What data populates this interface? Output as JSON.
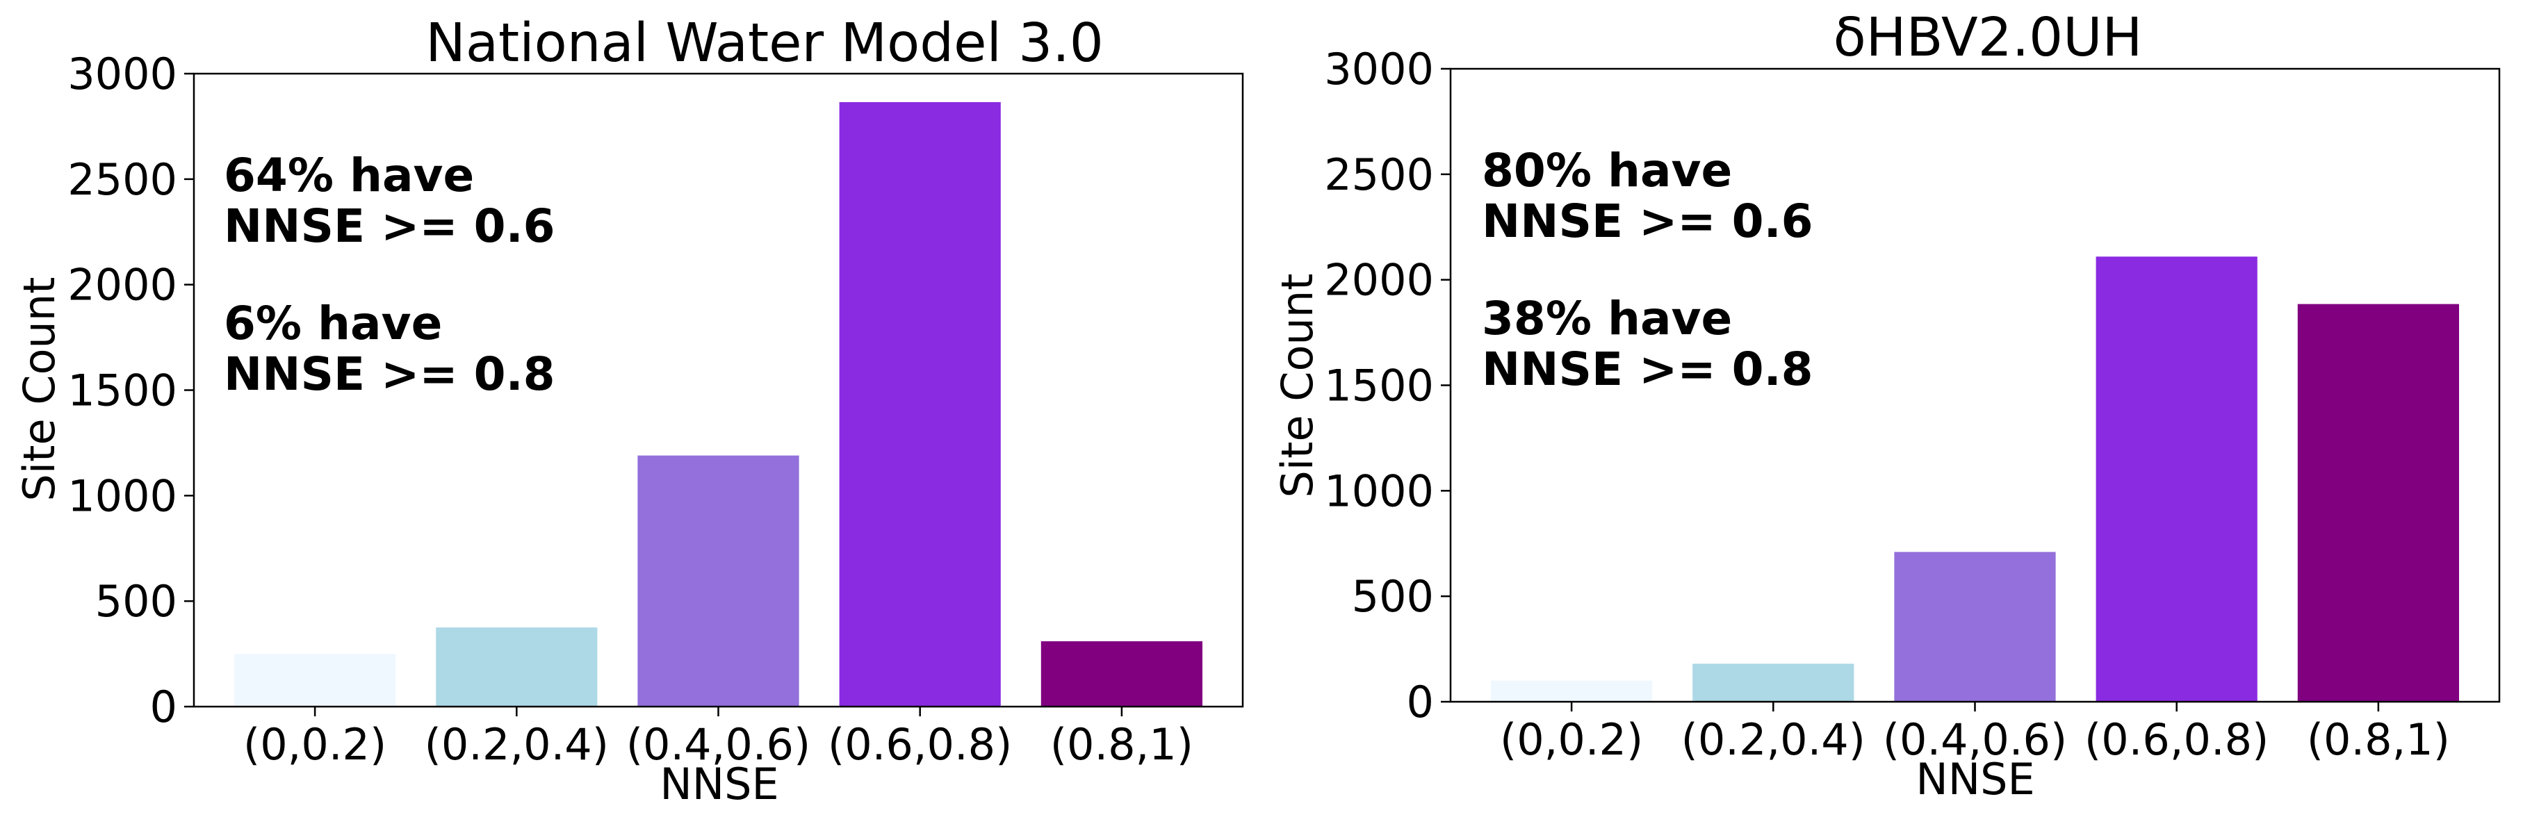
{
  "chart_data": [
    {
      "type": "bar",
      "title": "National Water Model 3.0",
      "xlabel": "NNSE",
      "ylabel": "Site Count",
      "categories": [
        "(0,0.2)",
        "(0.2,0.4)",
        "(0.4,0.6)",
        "(0.6,0.8)",
        "(0.8,1)"
      ],
      "values": [
        250,
        375,
        1190,
        2865,
        310
      ],
      "bar_colors": [
        "#f0f8ff",
        "#add8e6",
        "#9370db",
        "#8a2be2",
        "#800080"
      ],
      "ylim": [
        0,
        3000
      ],
      "yticks": [
        "0",
        "500",
        "1000",
        "1500",
        "2000",
        "2500",
        "3000"
      ],
      "annotations": [
        "64% have",
        "NNSE >= 0.6",
        "6% have",
        "NNSE >= 0.8"
      ],
      "grid": false,
      "legend": "none"
    },
    {
      "type": "bar",
      "title": "δHBV2.0UH",
      "xlabel": "NNSE",
      "ylabel": "Site Count",
      "categories": [
        "(0,0.2)",
        "(0.2,0.4)",
        "(0.4,0.6)",
        "(0.6,0.8)",
        "(0.8,1)"
      ],
      "values": [
        100,
        180,
        710,
        2110,
        1885
      ],
      "bar_colors": [
        "#f0f8ff",
        "#add8e6",
        "#9370db",
        "#8a2be2",
        "#800080"
      ],
      "ylim": [
        0,
        3000
      ],
      "yticks": [
        "0",
        "500",
        "1000",
        "1500",
        "2000",
        "2500",
        "3000"
      ],
      "annotations": [
        "80% have",
        "NNSE >= 0.6",
        "38% have",
        "NNSE >= 0.8"
      ],
      "grid": false,
      "legend": "none"
    }
  ]
}
